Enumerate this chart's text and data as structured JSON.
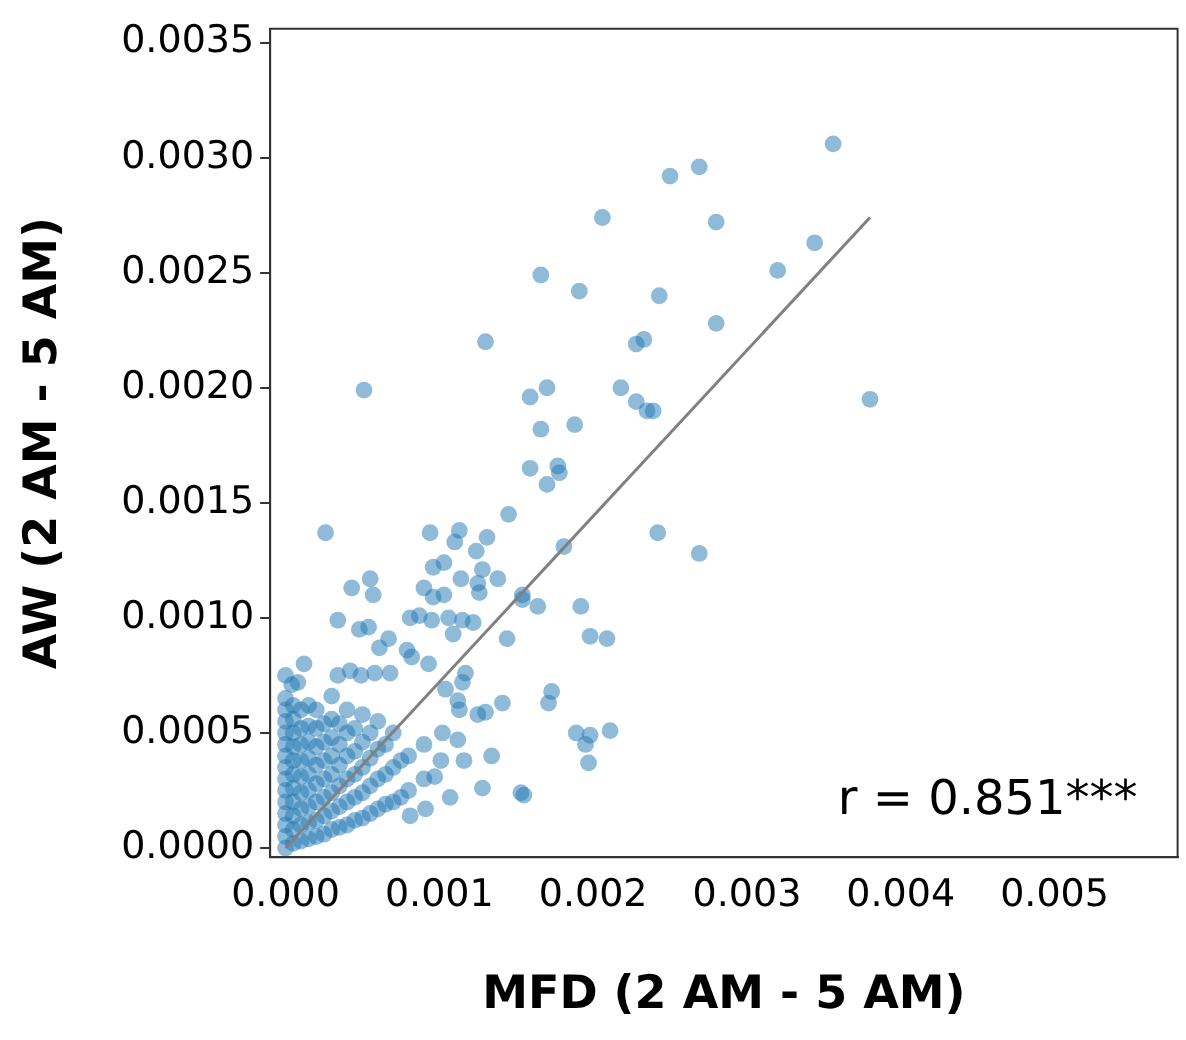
{
  "chart_data": {
    "type": "scatter",
    "xlabel": "MFD (2 AM - 5 AM)",
    "ylabel": "AW (2 AM - 5 AM)",
    "annotations": [
      "r = 0.851***"
    ],
    "xlim": [
      -0.0001,
      0.0058
    ],
    "ylim": [
      -4e-05,
      0.00356
    ],
    "xticks": [
      {
        "value": 0,
        "label": "0.000"
      },
      0.001,
      0.002,
      0.003,
      0.004,
      0.005
    ],
    "yticks": [
      {
        "value": 0,
        "label": "0.0000"
      },
      {
        "value": 0.0005,
        "label": "0.0005"
      },
      {
        "value": 0.001,
        "label": "0.0010"
      },
      {
        "value": 0.0015,
        "label": "0.0015"
      },
      {
        "value": 0.002,
        "label": "0.0020"
      },
      {
        "value": 0.0025,
        "label": "0.0025"
      },
      {
        "value": 0.003,
        "label": "0.0030"
      },
      {
        "value": 0.0035,
        "label": "0.0035"
      }
    ],
    "legend": false,
    "series": [
      {
        "color": "#1f77b4",
        "marker": "circle",
        "x": [
          0.00356,
          0.0025,
          0.00269,
          0.00206,
          0.0028,
          0.00344,
          0.0032,
          0.00166,
          0.00191,
          0.00243,
          0.0028,
          0.0013,
          0.00228,
          0.00233,
          0.00051,
          0.00159,
          0.0017,
          0.00218,
          0.00228,
          0.00235,
          0.00239,
          0.0038,
          0.00166,
          0.00188,
          0.00159,
          0.00177,
          0.00178,
          0.0017,
          0.00145,
          0.00026,
          0.00094,
          0.00113,
          0.00131,
          0.0011,
          0.00124,
          0.00242,
          0.00269,
          0.00181,
          0.00096,
          0.00103,
          0.00128,
          0.00114,
          0.00138,
          0.00043,
          0.00055,
          0.00057,
          0.0009,
          0.00103,
          0.00096,
          0.00125,
          0.00126,
          0.00154,
          0.00154,
          0.00164,
          0.00192,
          0.00034,
          0.00048,
          0.00054,
          0.00067,
          0.00081,
          0.00087,
          0.00095,
          0.00106,
          0.00115,
          0.00109,
          0.00122,
          0.00144,
          0.00198,
          0.00209,
          0.00061,
          0.00079,
          0.00082,
          0.00012,
          0,
          4e-05,
          8e-05,
          0.00034,
          0.00042,
          0.00049,
          0.00058,
          0.00068,
          0.00093,
          0.00117,
          0.00115,
          0.00104,
          0.00173,
          0.00171,
          0.00141,
          0.00112,
          0.00113,
          0.00125,
          0.0013,
          0.00189,
          0.00198,
          0.00211,
          0.00195,
          0.00197,
          0.00134,
          0.00116,
          0.00128,
          0.00153,
          0.00155,
          0.00112,
          0.00102,
          0.00101,
          0.00097,
          0.00107,
          0.00091,
          0.00081,
          0,
          0,
          0,
          0,
          0,
          0,
          0,
          0,
          0,
          0,
          0,
          0,
          0,
          0,
          5e-05,
          5e-05,
          5e-05,
          5e-05,
          5e-05,
          5e-05,
          5e-05,
          5e-05,
          5e-05,
          5e-05,
          5e-05,
          0.0001,
          0.0001,
          0.0001,
          0.0001,
          0.0001,
          0.0001,
          0.0001,
          0.0001,
          0.0001,
          0.00015,
          0.00015,
          0.00015,
          0.00015,
          0.00015,
          0.00015,
          0.00015,
          0.00015,
          0.00015,
          0.0002,
          0.0002,
          0.0002,
          0.0002,
          0.0002,
          0.0002,
          0.0002,
          0.0002,
          0.00025,
          0.00025,
          0.00025,
          0.00025,
          0.00025,
          0.00025,
          0.00025,
          0.0003,
          0.0003,
          0.0003,
          0.0003,
          0.0003,
          0.0003,
          0.0003,
          0.0003,
          0.00035,
          0.00035,
          0.00035,
          0.00035,
          0.00035,
          0.00035,
          0.0004,
          0.0004,
          0.0004,
          0.0004,
          0.0004,
          0.0004,
          0.00045,
          0.00045,
          0.00045,
          0.00045,
          0.00045,
          0.0005,
          0.0005,
          0.0005,
          0.0005,
          0.0005,
          0.00055,
          0.00055,
          0.00055,
          0.00055,
          0.0006,
          0.0006,
          0.0006,
          0.0006,
          0.00065,
          0.00065,
          0.00065,
          0.0007,
          0.0007,
          0.0007,
          0.00075,
          0.00075,
          0.0008,
          0.0008,
          0.0009,
          0.0009
        ],
        "values": [
          0.00306,
          0.00292,
          0.00296,
          0.00274,
          0.00272,
          0.00263,
          0.00251,
          0.00249,
          0.00242,
          0.0024,
          0.00228,
          0.0022,
          0.00219,
          0.00221,
          0.00199,
          0.00196,
          0.002,
          0.002,
          0.00194,
          0.0019,
          0.0019,
          0.00195,
          0.00182,
          0.00184,
          0.00165,
          0.00166,
          0.00163,
          0.00158,
          0.00145,
          0.00137,
          0.00137,
          0.00138,
          0.00135,
          0.00133,
          0.00129,
          0.00137,
          0.00128,
          0.00131,
          0.00122,
          0.00124,
          0.00121,
          0.00117,
          0.00117,
          0.00113,
          0.00117,
          0.0011,
          0.00113,
          0.0011,
          0.00109,
          0.00115,
          0.00111,
          0.0011,
          0.00108,
          0.00105,
          0.00105,
          0.00099,
          0.00095,
          0.00096,
          0.00091,
          0.001,
          0.00101,
          0.00099,
          0.001,
          0.00099,
          0.00093,
          0.00098,
          0.00091,
          0.00092,
          0.00091,
          0.00087,
          0.00086,
          0.00083,
          0.0008,
          0.00075,
          0.00071,
          0.00072,
          0.00075,
          0.00077,
          0.00075,
          0.00076,
          0.00076,
          0.0008,
          0.00076,
          0.00072,
          0.00069,
          0.00068,
          0.00063,
          0.00063,
          0.00064,
          0.0006,
          0.00058,
          0.00059,
          0.0005,
          0.00049,
          0.00051,
          0.00045,
          0.00037,
          0.0004,
          0.00038,
          0.00026,
          0.00024,
          0.00023,
          0.00047,
          0.0005,
          0.00038,
          0.00031,
          0.00022,
          0.00017,
          0.00014,
          0,
          5e-05,
          0.0001,
          0.00015,
          0.0002,
          0.00025,
          0.0003,
          0.00035,
          0.0004,
          0.00045,
          0.0005,
          0.00055,
          0.0006,
          0.00065,
          2e-05,
          8e-05,
          0.00014,
          0.0002,
          0.00026,
          0.00032,
          0.00038,
          0.00044,
          0.0005,
          0.00056,
          0.00062,
          3e-05,
          0.0001,
          0.00017,
          0.00024,
          0.00031,
          0.00038,
          0.00045,
          0.00052,
          0.0006,
          4e-05,
          0.00011,
          0.00018,
          0.00025,
          0.00032,
          0.00039,
          0.00046,
          0.00053,
          0.00062,
          5e-05,
          0.00012,
          0.0002,
          0.00028,
          0.00036,
          0.00044,
          0.00052,
          0.0006,
          6e-05,
          0.00014,
          0.00022,
          0.0003,
          0.00038,
          0.00046,
          0.00054,
          8e-05,
          0.00016,
          0.00024,
          0.00032,
          0.0004,
          0.00048,
          0.00056,
          0.00066,
          9e-05,
          0.00018,
          0.00027,
          0.00036,
          0.00045,
          0.00054,
          0.0001,
          0.0002,
          0.0003,
          0.0004,
          0.0005,
          0.0006,
          0.00012,
          0.00022,
          0.00032,
          0.00042,
          0.00052,
          0.00013,
          0.00024,
          0.00035,
          0.00046,
          0.00058,
          0.00015,
          0.00027,
          0.00039,
          0.0005,
          0.00017,
          0.0003,
          0.00043,
          0.00055,
          0.00019,
          0.00032,
          0.00045,
          0.0002,
          0.00035,
          0.0005,
          0.00022,
          0.00038,
          0.00025,
          0.0004,
          0.0003,
          0.00045
        ]
      },
      {
        "type": "line",
        "color": "#808080",
        "marker": "none",
        "x": [
          0,
          0.0038
        ],
        "values": [
          0,
          0.00274
        ]
      }
    ]
  }
}
